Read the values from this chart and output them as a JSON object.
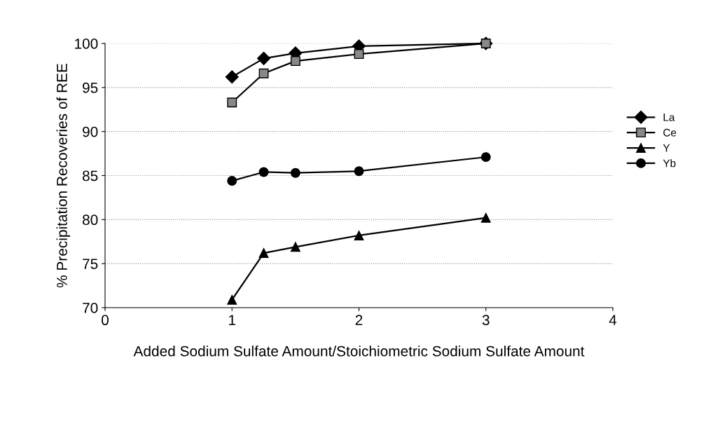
{
  "chart_data": {
    "type": "line",
    "xlabel": "Added Sodium Sulfate Amount/Stoichiometric Sodium Sulfate Amount",
    "ylabel": "% Precipitation Recoveries of REE",
    "x": [
      1,
      1.25,
      1.5,
      2,
      3
    ],
    "series": [
      {
        "name": "La",
        "color": "#000000",
        "marker": "diamond",
        "values": [
          96.2,
          98.3,
          98.9,
          99.7,
          100
        ]
      },
      {
        "name": "Ce",
        "color": "#000000",
        "marker": "square",
        "values": [
          93.3,
          96.6,
          98.0,
          98.8,
          100
        ]
      },
      {
        "name": "Y",
        "color": "#000000",
        "marker": "triangle",
        "values": [
          70.9,
          76.2,
          76.9,
          78.2,
          80.2
        ]
      },
      {
        "name": "Yb",
        "color": "#000000",
        "marker": "circle",
        "values": [
          84.4,
          85.4,
          85.3,
          85.5,
          87.1
        ]
      }
    ],
    "xlim": [
      0,
      4
    ],
    "xticks": [
      0,
      1,
      2,
      3,
      4
    ],
    "ylim": [
      70,
      100
    ],
    "yticks": [
      70,
      75,
      80,
      85,
      90,
      95,
      100
    ],
    "grid": "y",
    "legend": "right",
    "line_style": "solid"
  }
}
